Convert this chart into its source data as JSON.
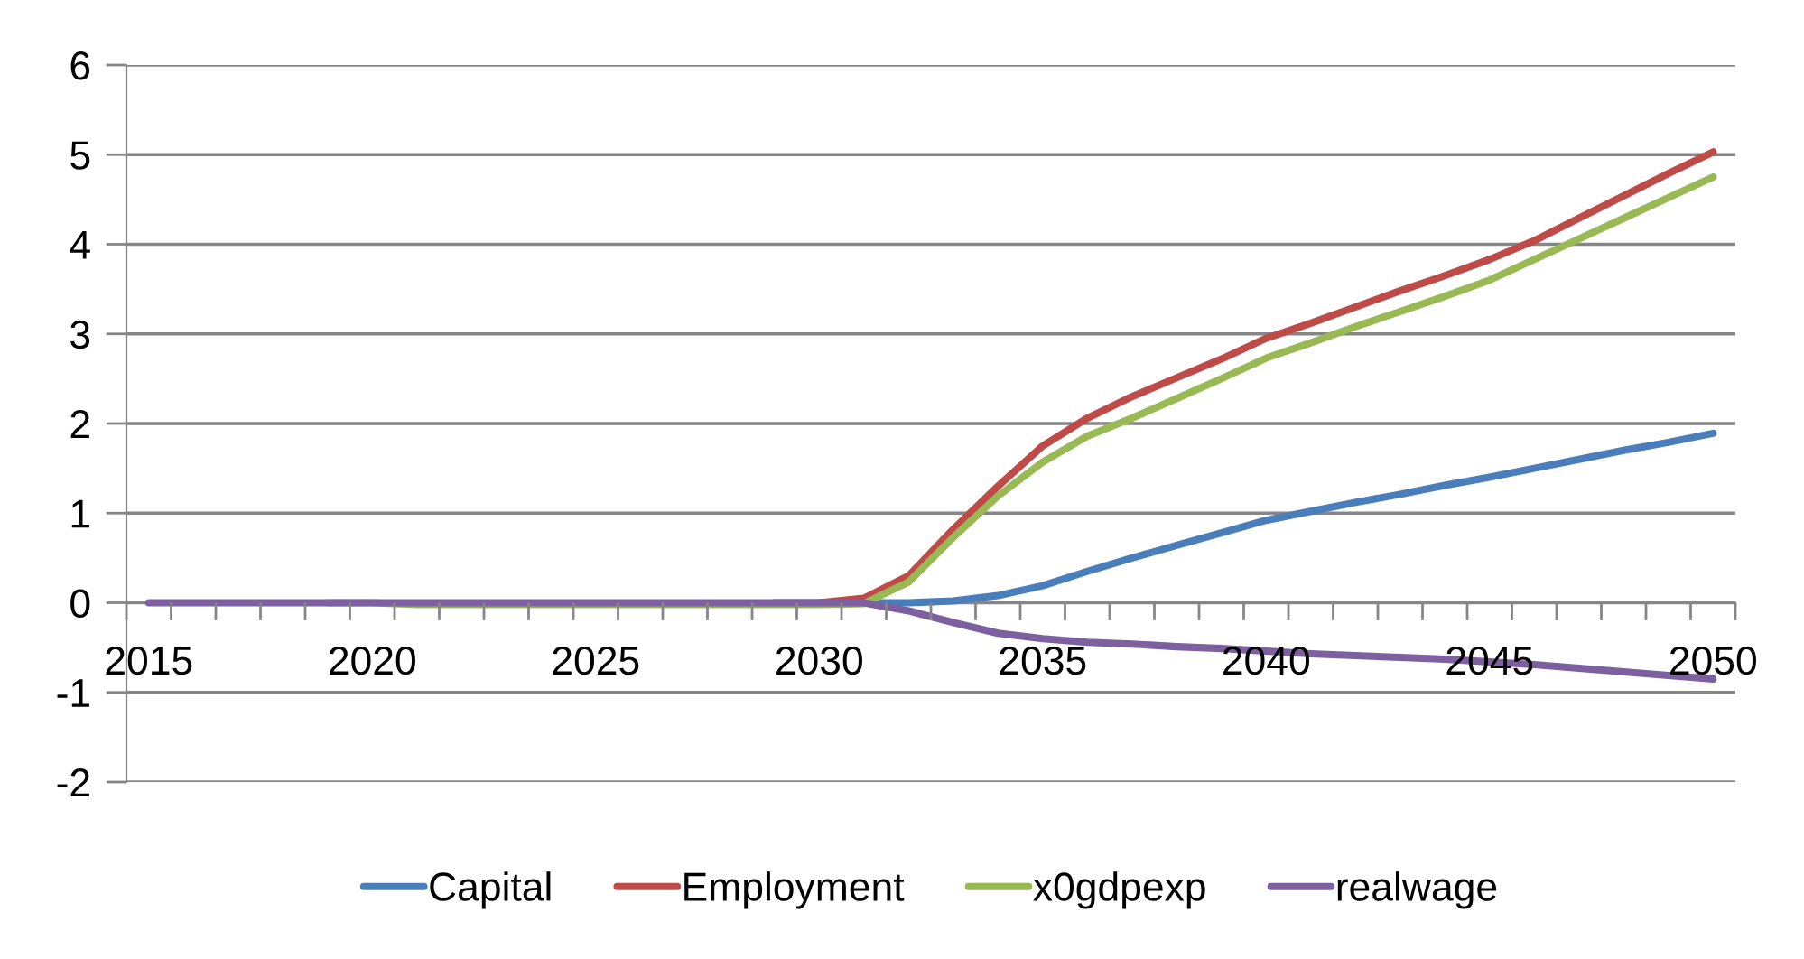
{
  "chart_data": {
    "type": "line",
    "categories": [
      "2015",
      null,
      null,
      null,
      null,
      "2020",
      null,
      null,
      null,
      null,
      "2025",
      null,
      null,
      null,
      null,
      "2030",
      null,
      null,
      null,
      null,
      "2035",
      null,
      null,
      null,
      null,
      "2040",
      null,
      null,
      null,
      null,
      "2045",
      null,
      null,
      null,
      null,
      "2050"
    ],
    "series": [
      {
        "name": "Capital",
        "color": "#4a7ebb",
        "values": [
          null,
          null,
          null,
          null,
          null,
          null,
          null,
          null,
          null,
          null,
          null,
          null,
          null,
          null,
          null,
          0,
          0,
          0,
          0.02,
          0.08,
          0.19,
          0.35,
          0.5,
          0.64,
          0.78,
          0.92,
          1.02,
          1.12,
          1.21,
          1.31,
          1.4,
          1.5,
          1.6,
          1.7,
          1.79,
          1.89
        ]
      },
      {
        "name": "Employment",
        "color": "#be4b48",
        "values": [
          null,
          null,
          null,
          null,
          null,
          null,
          null,
          null,
          null,
          null,
          null,
          null,
          null,
          null,
          0,
          0,
          0.05,
          0.3,
          0.82,
          1.3,
          1.75,
          2.06,
          2.3,
          2.51,
          2.72,
          2.95,
          3.12,
          3.3,
          3.48,
          3.65,
          3.83,
          4.04,
          4.29,
          4.54,
          4.79,
          5.03
        ]
      },
      {
        "name": "x0gdpexp",
        "color": "#98b954",
        "values": [
          null,
          null,
          null,
          null,
          0,
          0,
          -0.02,
          -0.02,
          -0.02,
          -0.02,
          -0.02,
          -0.02,
          -0.02,
          -0.02,
          -0.02,
          -0.02,
          -0.01,
          0.23,
          0.73,
          1.19,
          1.57,
          1.86,
          2.06,
          2.28,
          2.5,
          2.73,
          2.9,
          3.08,
          3.25,
          3.42,
          3.6,
          3.83,
          4.06,
          4.29,
          4.52,
          4.75
        ]
      },
      {
        "name": "realwage",
        "color": "#7d60a0",
        "values": [
          0,
          0,
          0,
          0,
          0,
          0,
          0,
          0,
          0,
          0,
          0,
          0,
          0,
          0,
          0,
          0,
          0,
          -0.09,
          -0.22,
          -0.34,
          -0.4,
          -0.44,
          -0.46,
          -0.49,
          -0.51,
          -0.54,
          -0.57,
          -0.59,
          -0.61,
          -0.63,
          -0.66,
          -0.69,
          -0.73,
          -0.77,
          -0.81,
          -0.85
        ]
      }
    ],
    "ylim": [
      -2,
      6
    ],
    "yticks": [
      -2,
      -1,
      0,
      1,
      2,
      3,
      4,
      5,
      6
    ],
    "grid": "y",
    "legend": "bottom",
    "line_style": "solid"
  }
}
